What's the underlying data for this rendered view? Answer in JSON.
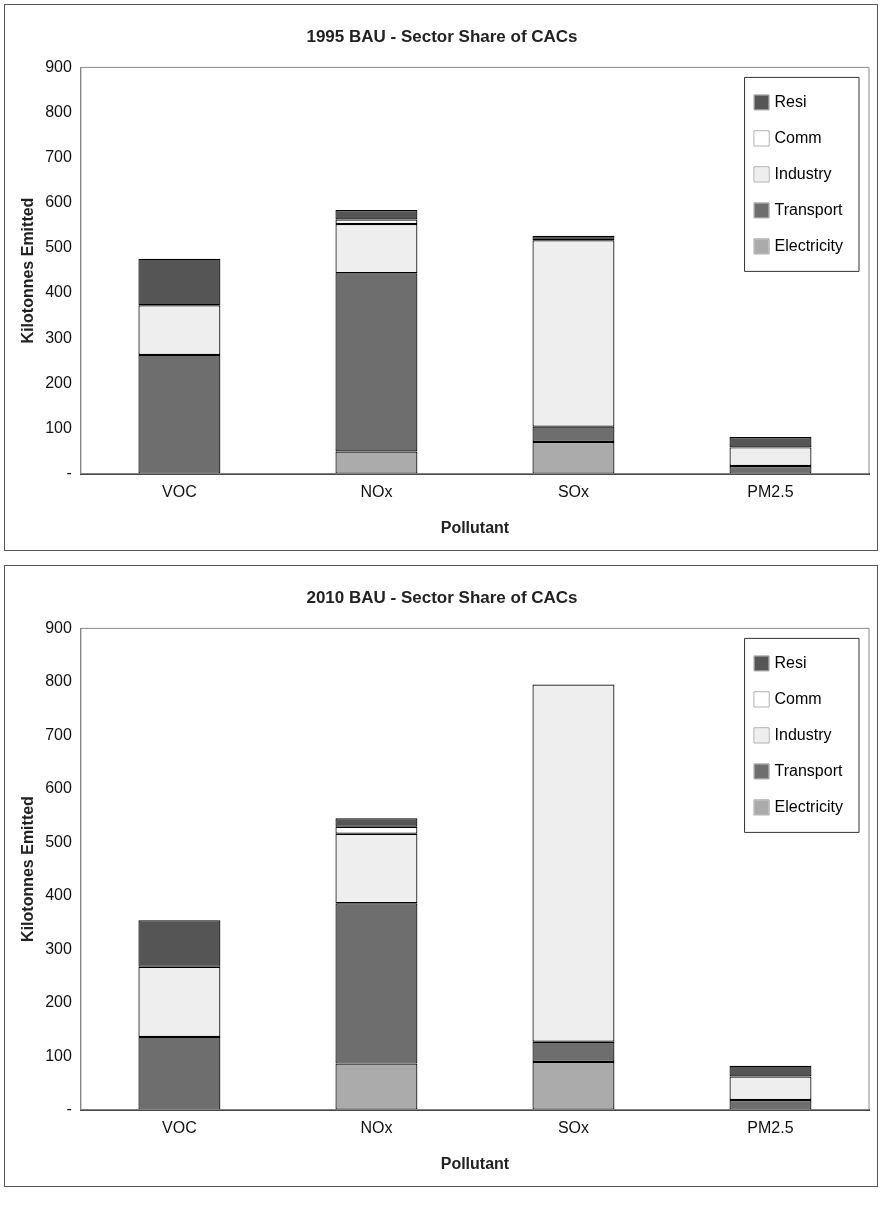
{
  "chart_data": [
    {
      "type": "bar",
      "title": "1995 BAU - Sector Share of CACs",
      "xlabel": "Pollutant",
      "ylabel": "Kilotonnes Emitted",
      "categories": [
        "VOC",
        "NOx",
        "SOx",
        "PM2.5"
      ],
      "stacked": true,
      "legend": "top right",
      "grid": false,
      "ylim": [
        0,
        900
      ],
      "yticks": [
        {
          "value": 0,
          "label": "-"
        },
        100,
        200,
        300,
        400,
        500,
        600,
        700,
        800,
        900
      ],
      "series": [
        {
          "name": "Electricity",
          "color": "#ababab",
          "values": [
            0,
            49,
            70,
            0
          ]
        },
        {
          "name": "Transport",
          "color": "#6e6e6e",
          "values": [
            263,
            395,
            34,
            17
          ]
        },
        {
          "name": "Industry",
          "color": "#eeeeee",
          "values": [
            110,
            109,
            413,
            41
          ]
        },
        {
          "name": "Comm",
          "color": "#ffffff",
          "values": [
            0,
            10,
            0,
            0
          ]
        },
        {
          "name": "Resi",
          "color": "#555555",
          "values": [
            103,
            21,
            10,
            23
          ]
        }
      ]
    },
    {
      "type": "bar",
      "title": "2010 BAU - Sector Share of CACs",
      "xlabel": "Pollutant",
      "ylabel": "Kilotonnes Emitted",
      "categories": [
        "VOC",
        "NOx",
        "SOx",
        "PM2.5"
      ],
      "stacked": true,
      "legend": "top right",
      "grid": false,
      "ylim": [
        0,
        900
      ],
      "yticks": [
        {
          "value": 0,
          "label": "-"
        },
        100,
        200,
        300,
        400,
        500,
        600,
        700,
        800,
        900
      ],
      "series": [
        {
          "name": "Electricity",
          "color": "#ababab",
          "values": [
            0,
            86,
            89,
            0
          ]
        },
        {
          "name": "Transport",
          "color": "#6e6e6e",
          "values": [
            136,
            300,
            38,
            18
          ]
        },
        {
          "name": "Industry",
          "color": "#eeeeee",
          "values": [
            131,
            130,
            668,
            44
          ]
        },
        {
          "name": "Comm",
          "color": "#ffffff",
          "values": [
            0,
            13,
            0,
            0
          ]
        },
        {
          "name": "Resi",
          "color": "#555555",
          "values": [
            87,
            16,
            0,
            20
          ]
        }
      ]
    }
  ]
}
